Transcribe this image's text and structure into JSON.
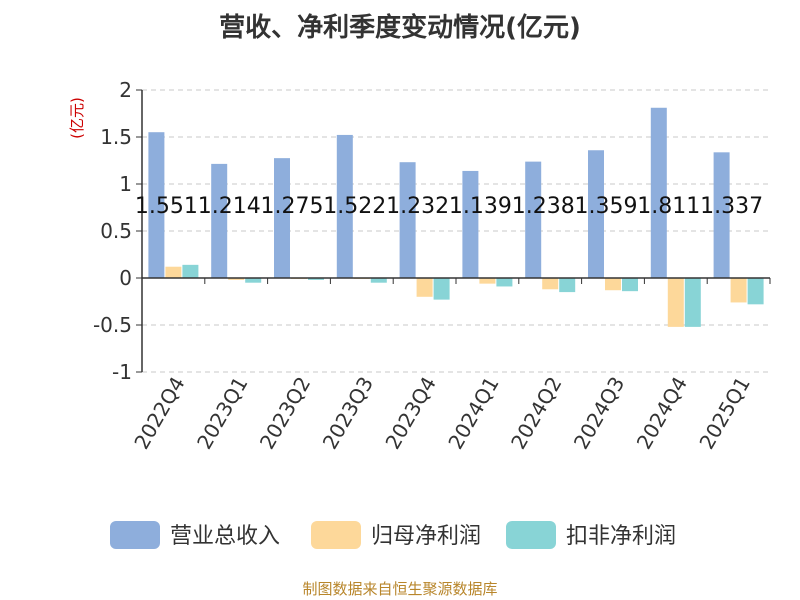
{
  "chart_data": {
    "type": "bar",
    "title": "营收、净利季度变动情况(亿元)",
    "unit_label": "(亿元)",
    "categories": [
      "2022Q4",
      "2023Q1",
      "2023Q2",
      "2023Q3",
      "2023Q4",
      "2024Q1",
      "2024Q2",
      "2024Q3",
      "2024Q4",
      "2025Q1"
    ],
    "series": [
      {
        "name": "营业总收入",
        "color": "#8eaedc",
        "values": [
          1.551,
          1.214,
          1.275,
          1.522,
          1.232,
          1.139,
          1.238,
          1.359,
          1.811,
          1.337
        ],
        "labels": [
          "1.551",
          "1.214",
          "1.275",
          "1.522",
          "1.232",
          "1.139",
          "1.238",
          "1.359",
          "1.811",
          "1.337"
        ]
      },
      {
        "name": "归母净利润",
        "color": "#fdd89a",
        "values": [
          0.12,
          -0.02,
          -0.01,
          -0.01,
          -0.2,
          -0.06,
          -0.12,
          -0.13,
          -0.52,
          -0.26
        ]
      },
      {
        "name": "扣非净利润",
        "color": "#88d4d6",
        "values": [
          0.14,
          -0.05,
          -0.02,
          -0.05,
          -0.23,
          -0.09,
          -0.15,
          -0.14,
          -0.52,
          -0.28
        ]
      }
    ],
    "yticks": [
      "2",
      "1.5",
      "1",
      "0.5",
      "0",
      "-0.5",
      "-1"
    ],
    "ylim": [
      -1,
      2
    ],
    "grid": "horizontal-dashed",
    "legend": "bottom"
  },
  "source": "制图数据来自恒生聚源数据库"
}
